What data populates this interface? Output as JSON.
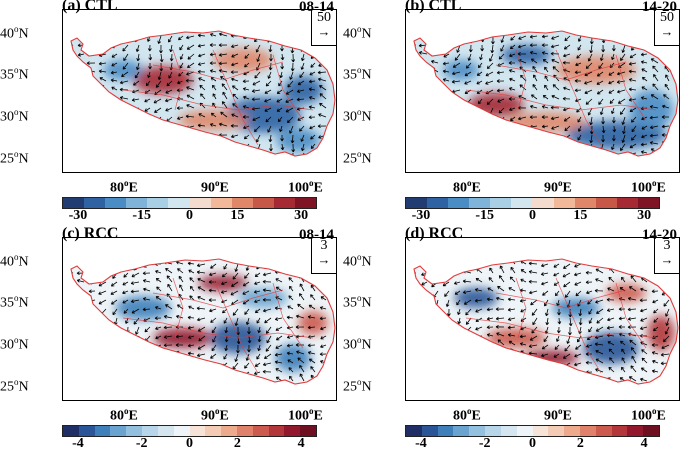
{
  "panels": [
    {
      "label": "(a) CTL",
      "time": "08-14",
      "ref_value": "50",
      "cbar_ticks": [
        "-30",
        "-15",
        "0",
        "15",
        "30"
      ],
      "cbar_colors": "div12",
      "pattern": 0
    },
    {
      "label": "(b) CTL",
      "time": "14-20",
      "ref_value": "50",
      "cbar_ticks": [
        "-30",
        "-15",
        "0",
        "15",
        "30"
      ],
      "cbar_colors": "div12",
      "pattern": 1
    },
    {
      "label": "(c) RCC",
      "time": "08-14",
      "ref_value": "3",
      "cbar_ticks": [
        "-4",
        "-2",
        "0",
        "2",
        "4"
      ],
      "cbar_colors": "div16",
      "pattern": 2
    },
    {
      "label": "(d) RCC",
      "time": "14-20",
      "ref_value": "3",
      "cbar_ticks": [
        "-4",
        "-2",
        "0",
        "2",
        "4"
      ],
      "cbar_colors": "div16",
      "pattern": 3
    }
  ],
  "lat_labels": [
    "40",
    "35",
    "30",
    "25"
  ],
  "lat_suffix": "N",
  "lon_labels": [
    "80",
    "90",
    "100"
  ],
  "lon_suffix": "E",
  "degree_mark": "o",
  "colors": {
    "boundary": "#e23b3b",
    "arrow": "#000000",
    "div12": [
      "#213b73",
      "#2f62a3",
      "#4a8cc4",
      "#7fb3d8",
      "#a9cfe4",
      "#d2e6f0",
      "#f3dccd",
      "#f1b99a",
      "#e0876a",
      "#c75746",
      "#a52a34",
      "#7e1424"
    ],
    "div16": [
      "#1f2f66",
      "#2a5597",
      "#3f7fba",
      "#6aa3cf",
      "#93c0de",
      "#b7d6ea",
      "#d5e6f1",
      "#eef4f7",
      "#f6e4d8",
      "#f4cbb4",
      "#eeaa8d",
      "#e0816b",
      "#cc5a4e",
      "#b3363b",
      "#92192d",
      "#6f0f22"
    ]
  }
}
